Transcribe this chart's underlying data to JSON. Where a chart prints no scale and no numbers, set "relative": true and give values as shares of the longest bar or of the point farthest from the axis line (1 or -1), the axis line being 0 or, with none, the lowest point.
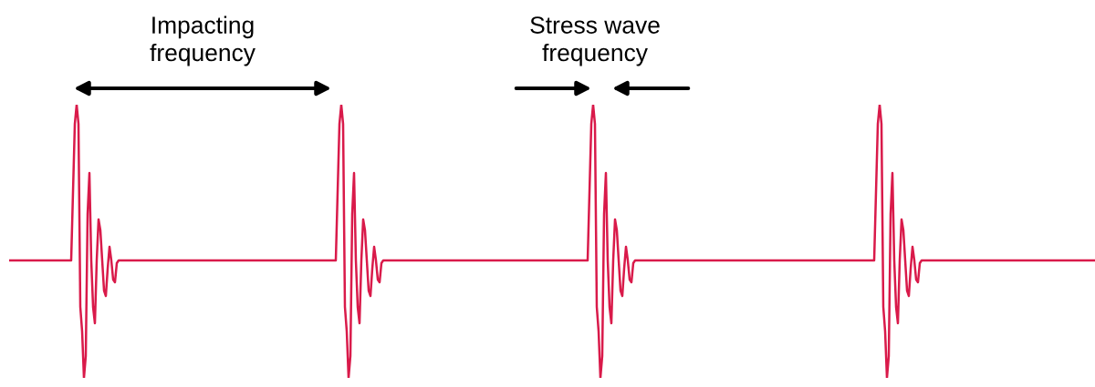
{
  "chart_data": {
    "type": "line",
    "relative": true,
    "marker": "none",
    "line_style": "solid",
    "annotations": [
      "Impacting\nfrequency",
      "Stress wave\nfrequency"
    ],
    "categories": [
      null,
      null,
      null,
      null,
      null,
      null,
      null,
      null,
      null,
      null,
      null,
      null,
      null,
      null,
      null,
      null,
      null,
      null,
      null,
      null,
      null,
      null,
      null,
      null,
      null,
      null,
      null,
      null,
      null,
      null,
      null,
      null,
      null,
      null,
      null,
      null,
      null,
      null,
      null,
      null,
      null,
      null,
      null,
      null,
      null,
      null,
      null,
      null,
      null,
      null,
      null,
      null,
      null,
      null,
      null,
      null,
      null,
      null,
      null,
      null,
      null,
      null,
      null,
      null,
      null,
      null,
      null,
      null,
      null,
      null,
      null,
      null,
      null,
      null,
      null,
      null,
      null,
      null,
      null,
      null,
      null,
      null,
      null,
      null,
      null,
      null,
      null,
      null,
      null,
      null,
      null,
      null,
      null,
      null,
      null,
      null,
      null,
      null,
      null,
      null,
      null,
      null,
      null,
      null,
      null,
      null,
      null,
      null,
      null,
      null,
      null,
      null,
      null,
      null,
      null,
      null,
      null,
      null,
      null,
      null,
      null,
      null,
      null,
      null,
      null,
      null,
      null,
      null,
      null,
      null,
      null,
      null,
      null,
      null,
      null,
      null,
      null,
      null,
      null,
      null,
      null,
      null,
      null,
      null,
      null,
      null,
      null,
      null,
      null,
      null,
      null,
      null,
      null,
      null,
      null,
      null,
      null,
      null,
      null,
      null,
      null,
      null,
      null,
      null,
      null,
      null,
      null,
      null,
      null,
      null,
      null,
      null,
      null,
      null,
      null,
      null,
      null,
      null,
      null,
      null,
      null,
      null,
      null,
      null,
      null,
      null,
      null,
      null,
      null,
      null,
      null,
      null,
      null,
      null,
      null,
      null,
      null,
      null,
      null,
      null,
      null,
      null,
      null,
      null,
      null,
      null,
      null,
      null,
      null,
      null,
      null,
      null,
      null,
      null,
      null,
      null,
      null,
      null,
      null,
      null,
      null,
      null,
      null,
      null,
      null,
      null,
      null,
      null,
      null,
      null,
      null,
      null,
      null,
      null,
      null,
      null,
      null,
      null,
      null,
      null,
      null,
      null,
      null,
      null,
      null,
      null,
      null,
      null,
      null,
      null,
      null,
      null,
      null,
      null,
      null,
      null,
      null,
      null,
      null,
      null,
      null,
      null,
      null,
      null,
      null,
      null,
      null,
      null,
      null,
      null,
      null,
      null,
      null,
      null,
      null,
      null,
      null,
      null,
      null,
      null,
      null,
      null,
      null,
      null,
      null,
      null,
      null,
      null,
      null,
      null,
      null,
      null,
      null,
      null,
      null,
      null,
      null,
      null,
      null,
      null,
      null,
      null,
      null,
      null,
      null,
      null,
      null,
      null,
      null,
      null,
      null,
      null,
      null,
      null,
      null,
      null,
      null,
      null,
      null,
      null,
      null,
      null,
      null,
      null,
      null,
      null,
      null,
      null,
      null,
      null,
      null,
      null,
      null,
      null,
      null,
      null,
      null,
      null,
      null,
      null,
      null,
      null,
      null,
      null,
      null,
      null,
      null,
      null,
      null,
      null,
      null,
      null,
      null,
      null,
      null,
      null,
      null,
      null,
      null,
      null,
      null,
      null,
      null,
      null,
      null,
      null,
      null,
      null,
      null,
      null,
      null,
      null,
      null,
      null,
      null,
      null,
      null,
      null,
      null,
      null,
      null,
      null,
      null,
      null,
      null,
      null,
      null,
      null,
      null,
      null,
      null,
      null,
      null,
      null,
      null,
      null,
      null,
      null,
      null,
      null,
      null,
      null,
      null,
      null,
      null,
      null,
      null,
      null,
      null,
      null,
      null,
      null,
      null,
      null,
      null,
      null,
      null,
      null,
      null,
      null,
      null,
      null,
      null,
      null,
      null,
      null,
      null,
      null,
      null,
      null,
      null,
      null,
      null,
      null,
      null,
      null,
      null,
      null,
      null,
      null,
      null,
      null,
      null,
      null,
      null,
      null,
      null,
      null,
      null,
      null,
      null,
      null,
      null,
      null,
      null,
      null,
      null,
      null,
      null,
      null,
      null,
      null,
      null,
      null,
      null,
      null,
      null,
      null,
      null,
      null,
      null,
      null,
      null,
      null,
      null,
      null,
      null,
      null,
      null,
      null,
      null,
      null,
      null,
      null,
      null,
      null,
      null,
      null,
      null,
      null,
      null,
      null,
      null,
      null,
      null,
      null,
      null,
      null,
      null,
      null,
      null,
      null,
      null,
      null,
      null,
      null,
      null,
      null,
      null,
      null,
      null,
      null,
      null,
      null,
      null,
      null,
      null,
      null,
      null,
      null,
      null,
      null,
      null,
      null,
      null,
      null,
      null,
      null,
      null,
      null,
      null,
      null,
      null,
      null,
      null,
      null,
      null,
      null,
      null,
      null,
      null,
      null,
      null,
      null,
      null,
      null,
      null,
      null,
      null,
      null,
      null,
      null,
      null,
      null,
      null,
      null,
      null,
      null,
      null,
      null,
      null,
      null,
      null,
      null,
      null,
      null,
      null,
      null,
      null,
      null,
      null,
      null,
      null,
      null,
      null,
      null,
      null,
      null,
      null,
      null,
      null,
      null,
      null,
      null,
      null,
      null,
      null,
      null,
      null,
      null,
      null,
      null,
      null,
      null,
      null,
      null
    ],
    "series": [
      {
        "color": "#d91a4a",
        "values": [
          0.43,
          0.43,
          0.43,
          0.43,
          0.43,
          0.43,
          0.43,
          0.43,
          0.43,
          0.43,
          0.43,
          0.43,
          0.43,
          0.43,
          0.43,
          0.43,
          0.43,
          0.43,
          0.43,
          0.43,
          0.43,
          0.43,
          0.43,
          0.43,
          0.43,
          0.43,
          0.43,
          0.43,
          0.43,
          0.43,
          0.43,
          0.43,
          0.43,
          0.43,
          0.43,
          0.68,
          0.93,
          1,
          0.93,
          0.26,
          0.17,
          0,
          0.08,
          0.6,
          0.75,
          0.43,
          0.26,
          0.2,
          0.43,
          0.58,
          0.54,
          0.43,
          0.32,
          0.3,
          0.4,
          0.48,
          0.43,
          0.36,
          0.35,
          0.42,
          0.43,
          0.43,
          0.43,
          0.43,
          0.43,
          0.43,
          0.43,
          0.43,
          0.43,
          0.43,
          0.43,
          0.43,
          0.43,
          0.43,
          0.43,
          0.43,
          0.43,
          0.43,
          0.43,
          0.43,
          0.43,
          0.43,
          0.43,
          0.43,
          0.43,
          0.43,
          0.43,
          0.43,
          0.43,
          0.43,
          0.43,
          0.43,
          0.43,
          0.43,
          0.43,
          0.43,
          0.43,
          0.43,
          0.43,
          0.43,
          0.43,
          0.43,
          0.43,
          0.43,
          0.43,
          0.43,
          0.43,
          0.43,
          0.43,
          0.43,
          0.43,
          0.43,
          0.43,
          0.43,
          0.43,
          0.43,
          0.43,
          0.43,
          0.43,
          0.43,
          0.43,
          0.43,
          0.43,
          0.43,
          0.43,
          0.43,
          0.43,
          0.43,
          0.43,
          0.43,
          0.43,
          0.43,
          0.43,
          0.43,
          0.43,
          0.43,
          0.43,
          0.43,
          0.43,
          0.43,
          0.43,
          0.43,
          0.43,
          0.43,
          0.43,
          0.43,
          0.43,
          0.43,
          0.43,
          0.43,
          0.43,
          0.43,
          0.43,
          0.43,
          0.43,
          0.43,
          0.43,
          0.43,
          0.43,
          0.43,
          0.43,
          0.43,
          0.43,
          0.43,
          0.43,
          0.43,
          0.43,
          0.43,
          0.43,
          0.43,
          0.43,
          0.43,
          0.43,
          0.43,
          0.43,
          0.43,
          0.43,
          0.43,
          0.43,
          0.43,
          0.68,
          0.93,
          1,
          0.93,
          0.26,
          0.17,
          0,
          0.08,
          0.6,
          0.75,
          0.43,
          0.26,
          0.2,
          0.43,
          0.58,
          0.54,
          0.43,
          0.32,
          0.3,
          0.4,
          0.48,
          0.43,
          0.36,
          0.35,
          0.42,
          0.43,
          0.43,
          0.43,
          0.43,
          0.43,
          0.43,
          0.43,
          0.43,
          0.43,
          0.43,
          0.43,
          0.43,
          0.43,
          0.43,
          0.43,
          0.43,
          0.43,
          0.43,
          0.43,
          0.43,
          0.43,
          0.43,
          0.43,
          0.43,
          0.43,
          0.43,
          0.43,
          0.43,
          0.43,
          0.43,
          0.43,
          0.43,
          0.43,
          0.43,
          0.43,
          0.43,
          0.43,
          0.43,
          0.43,
          0.43,
          0.43,
          0.43,
          0.43,
          0.43,
          0.43,
          0.43,
          0.43,
          0.43,
          0.43,
          0.43,
          0.43,
          0.43,
          0.43,
          0.43,
          0.43,
          0.43,
          0.43,
          0.43,
          0.43,
          0.43,
          0.43,
          0.43,
          0.43,
          0.43,
          0.43,
          0.43,
          0.43,
          0.43,
          0.43,
          0.43,
          0.43,
          0.43,
          0.43,
          0.43,
          0.43,
          0.43,
          0.43,
          0.43,
          0.43,
          0.43,
          0.43,
          0.43,
          0.43,
          0.43,
          0.43,
          0.43,
          0.43,
          0.43,
          0.43,
          0.43,
          0.43,
          0.43,
          0.43,
          0.43,
          0.43,
          0.43,
          0.43,
          0.43,
          0.43,
          0.43,
          0.43,
          0.43,
          0.43,
          0.43,
          0.43,
          0.43,
          0.43,
          0.43,
          0.43,
          0.43,
          0.43,
          0.43,
          0.43,
          0.68,
          0.93,
          1,
          0.93,
          0.26,
          0.17,
          0,
          0.08,
          0.6,
          0.75,
          0.43,
          0.26,
          0.2,
          0.43,
          0.58,
          0.54,
          0.43,
          0.32,
          0.3,
          0.4,
          0.48,
          0.43,
          0.36,
          0.35,
          0.42,
          0.43,
          0.43,
          0.43,
          0.43,
          0.43,
          0.43,
          0.43,
          0.43,
          0.43,
          0.43,
          0.43,
          0.43,
          0.43,
          0.43,
          0.43,
          0.43,
          0.43,
          0.43,
          0.43,
          0.43,
          0.43,
          0.43,
          0.43,
          0.43,
          0.43,
          0.43,
          0.43,
          0.43,
          0.43,
          0.43,
          0.43,
          0.43,
          0.43,
          0.43,
          0.43,
          0.43,
          0.43,
          0.43,
          0.43,
          0.43,
          0.43,
          0.43,
          0.43,
          0.43,
          0.43,
          0.43,
          0.43,
          0.43,
          0.43,
          0.43,
          0.43,
          0.43,
          0.43,
          0.43,
          0.43,
          0.43,
          0.43,
          0.43,
          0.43,
          0.43,
          0.43,
          0.43,
          0.43,
          0.43,
          0.43,
          0.43,
          0.43,
          0.43,
          0.43,
          0.43,
          0.43,
          0.43,
          0.43,
          0.43,
          0.43,
          0.43,
          0.43,
          0.43,
          0.43,
          0.43,
          0.43,
          0.43,
          0.43,
          0.43,
          0.43,
          0.43,
          0.43,
          0.43,
          0.43,
          0.43,
          0.43,
          0.43,
          0.43,
          0.43,
          0.43,
          0.43,
          0.43,
          0.43,
          0.43,
          0.43,
          0.43,
          0.43,
          0.43,
          0.43,
          0.43,
          0.43,
          0.43,
          0.43,
          0.43,
          0.43,
          0.43,
          0.43,
          0.43,
          0.43,
          0.43,
          0.43,
          0.43,
          0.43,
          0.43,
          0.43,
          0.43,
          0.43,
          0.43,
          0.43,
          0.43,
          0.43,
          0.43,
          0.43,
          0.43,
          0.43,
          0.43,
          0.43,
          0.68,
          0.93,
          1,
          0.93,
          0.26,
          0.17,
          0,
          0.08,
          0.6,
          0.75,
          0.43,
          0.26,
          0.2,
          0.43,
          0.58,
          0.54,
          0.43,
          0.32,
          0.3,
          0.4,
          0.48,
          0.43,
          0.36,
          0.35,
          0.42,
          0.43,
          0.43,
          0.43,
          0.43,
          0.43,
          0.43,
          0.43,
          0.43,
          0.43,
          0.43,
          0.43,
          0.43,
          0.43,
          0.43,
          0.43,
          0.43,
          0.43,
          0.43,
          0.43,
          0.43,
          0.43,
          0.43,
          0.43,
          0.43,
          0.43,
          0.43,
          0.43,
          0.43,
          0.43,
          0.43,
          0.43,
          0.43,
          0.43,
          0.43,
          0.43,
          0.43,
          0.43,
          0.43,
          0.43,
          0.43,
          0.43,
          0.43,
          0.43,
          0.43,
          0.43,
          0.43,
          0.43,
          0.43,
          0.43,
          0.43,
          0.43,
          0.43,
          0.43,
          0.43,
          0.43,
          0.43,
          0.43,
          0.43,
          0.43,
          0.43,
          0.43,
          0.43,
          0.43,
          0.43,
          0.43,
          0.43,
          0.43,
          0.43,
          0.43,
          0.43,
          0.43,
          0.43,
          0.43,
          0.43,
          0.43,
          0.43,
          0.43,
          0.43,
          0.43,
          0.43,
          0.43,
          0.43,
          0.43,
          0.43,
          0.43,
          0.43,
          0.43,
          0.43,
          0.43,
          0.43,
          0.43,
          0.43,
          0.43,
          0.43,
          0.43,
          0.43
        ]
      }
    ]
  }
}
